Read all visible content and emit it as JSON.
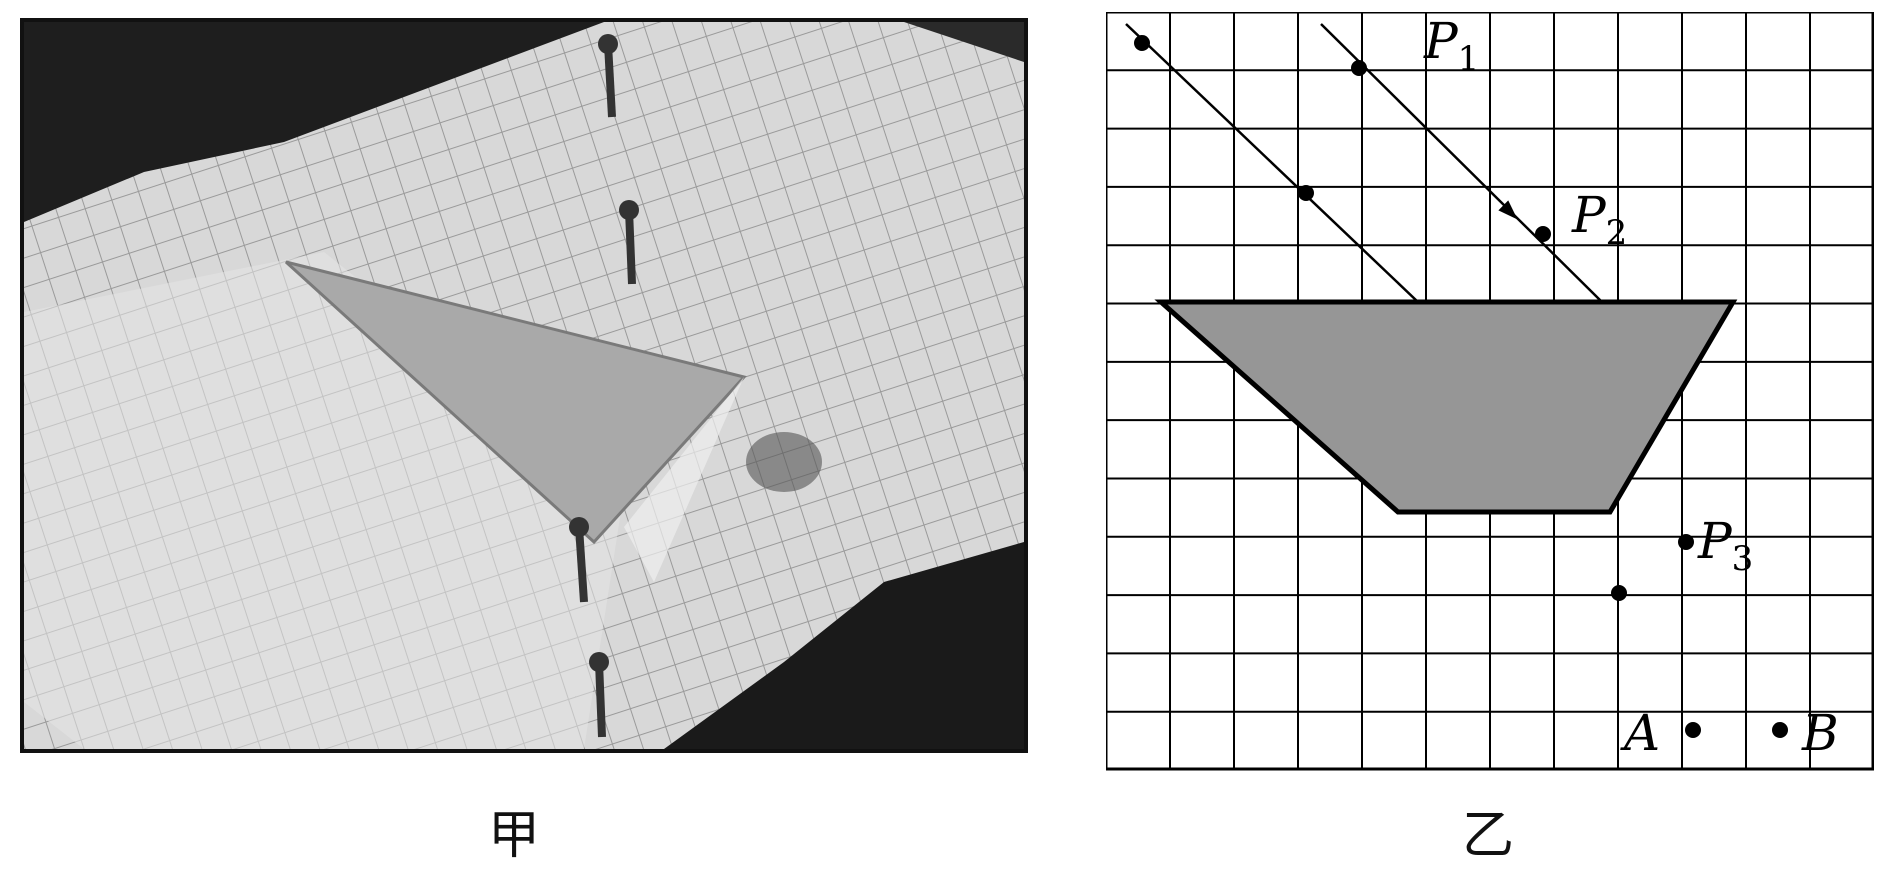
{
  "panels": {
    "left": {
      "caption": "甲"
    },
    "right": {
      "caption": "乙"
    }
  },
  "labels": {
    "P1": {
      "main": "P",
      "sub": "1"
    },
    "P2": {
      "main": "P",
      "sub": "2"
    },
    "P3": {
      "main": "P",
      "sub": "3"
    },
    "A": "A",
    "B": "B"
  }
}
